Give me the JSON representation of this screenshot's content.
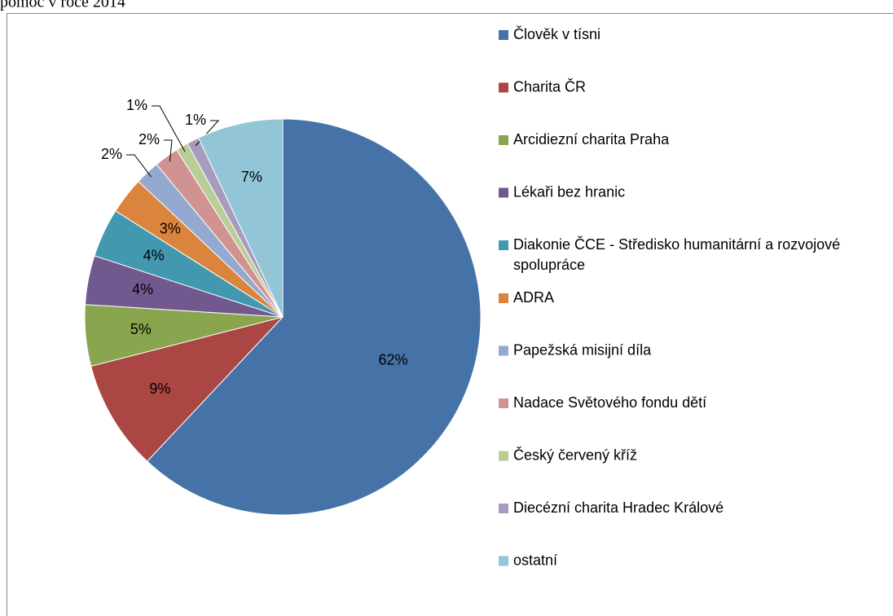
{
  "chart_data": {
    "type": "pie",
    "title": "pomoc v roce 2014",
    "categories": [
      "Člověk v tísni",
      "Charita ČR",
      "Arcidiezní charita Praha",
      "Lékaři bez hranic",
      "Diakonie ČCE - Středisko humanitární a rozvojové spolupráce",
      "ADRA",
      "Papežská misijní díla",
      "Nadace Světového fondu dětí",
      "Český červený kříž",
      "Diecézní charita Hradec Králové",
      "ostatní"
    ],
    "values": [
      62,
      9,
      5,
      4,
      4,
      3,
      2,
      2,
      1,
      1,
      7
    ],
    "value_labels": [
      "62%",
      "9%",
      "5%",
      "4%",
      "4%",
      "3%",
      "2%",
      "2%",
      "1%",
      "1%",
      "7%"
    ],
    "colors": [
      "#4572a7",
      "#aa4643",
      "#89a54e",
      "#71588f",
      "#4198af",
      "#db843d",
      "#93a9cf",
      "#d19392",
      "#b9cd96",
      "#a99bbd",
      "#92c5d5"
    ],
    "legend": "right"
  }
}
